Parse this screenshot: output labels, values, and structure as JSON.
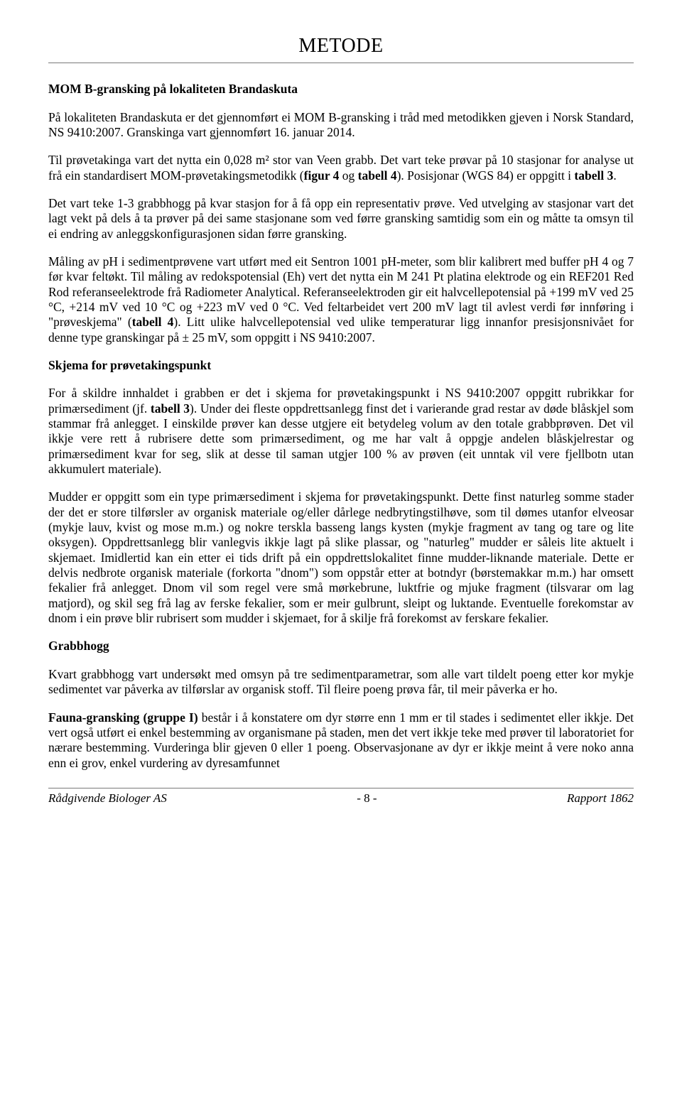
{
  "title": "METODE",
  "h1": "MOM B-gransking på lokaliteten Brandaskuta",
  "p1": "På lokaliteten Brandaskuta er det gjennomført ei MOM B-gransking i tråd med metodikken gjeven i Norsk Standard, NS 9410:2007. Granskinga vart gjennomført 16. januar 2014.",
  "p2a": "Til prøvetakinga vart det nytta ein 0,028 m² stor van Veen grabb. Det vart teke prøvar på 10 stasjonar for analyse ut frå ein standardisert MOM-prøvetakingsmetodikk (",
  "p2b_bold": "figur 4",
  "p2c": " og ",
  "p2d_bold": "tabell 4",
  "p2e": "). Posisjonar (WGS 84) er oppgitt i ",
  "p2f_bold": "tabell 3",
  "p2g": ".",
  "p3": "Det vart teke 1-3 grabbhogg på kvar stasjon for å få opp ein representativ prøve. Ved utvelging av stasjonar vart det lagt vekt på dels å ta prøver på dei same stasjonane som ved førre gransking samtidig som ein og måtte ta omsyn til ei endring av anleggskonfigurasjonen sidan førre gransking.",
  "p4a": "Måling av pH i sedimentprøvene vart utført med eit Sentron 1001 pH-meter, som blir kalibrert med buffer pH 4 og 7 før kvar feltøkt. Til måling av redokspotensial (Eh) vert det nytta ein M 241 Pt platina elektrode og ein REF201 Red Rod referanseelektrode frå Radiometer Analytical. Referanseelektroden gir eit halvcellepotensial på +199 mV ved 25 °C, +214 mV ved 10 °C og +223 mV ved 0 °C. Ved feltarbeidet vert 200 mV lagt til avlest verdi før innføring i \"prøveskjema\" (",
  "p4b_bold": "tabell 4",
  "p4c": "). Litt ulike halvcellepotensial ved ulike temperaturar ligg innanfor presisjonsnivået for denne type granskingar på ± 25 mV, som oppgitt i NS 9410:2007.",
  "h2": "Skjema for prøvetakingspunkt",
  "p5a": "For å skildre innhaldet i grabben er det i skjema for prøvetakingspunkt i NS 9410:2007 oppgitt rubrikkar for primærsediment (jf. ",
  "p5b_bold": "tabell 3",
  "p5c": "). Under dei fleste oppdrettsanlegg finst det i varierande grad restar av døde blåskjel som stammar frå anlegget. I einskilde prøver kan desse utgjere eit betydeleg volum av den totale grabbprøven. Det vil ikkje vere rett å rubrisere dette som primærsediment, og me har valt å oppgje andelen blåskjelrestar og primærsediment kvar for seg, slik at desse til saman utgjer 100 % av prøven (eit unntak vil vere fjellbotn utan akkumulert materiale).",
  "p6": "Mudder er oppgitt som ein type primærsediment i skjema for prøvetakingspunkt. Dette finst naturleg somme stader der det er store tilførsler av organisk materiale og/eller dårlege nedbrytingstilhøve, som til dømes utanfor elveosar (mykje lauv, kvist og mose m.m.) og nokre terskla basseng langs kysten (mykje fragment av tang og tare og lite oksygen). Oppdrettsanlegg blir vanlegvis ikkje lagt på slike plassar, og \"naturleg\" mudder er såleis lite aktuelt i skjemaet. Imidlertid kan ein etter ei tids drift på ein oppdrettslokalitet finne mudder-liknande materiale. Dette er delvis nedbrote organisk materiale (forkorta \"dnom\") som oppstår etter at botndyr (børstemakkar m.m.) har omsett fekalier frå anlegget. Dnom vil som regel vere små mørkebrune, luktfrie og mjuke fragment (tilsvarar om lag matjord), og skil seg frå lag av ferske fekalier, som er meir gulbrunt, sleipt og luktande. Eventuelle forekomstar av dnom i ein prøve blir rubrisert som mudder i skjemaet, for å skilje frå forekomst av ferskare fekalier.",
  "h3": "Grabbhogg",
  "p7": "Kvart grabbhogg vart undersøkt med omsyn på tre sedimentparametrar, som alle vart tildelt poeng etter kor mykje sedimentet var påverka av tilførslar av organisk stoff. Til fleire poeng prøva får, til meir påverka er ho.",
  "p8a_bold": "Fauna-gransking (gruppe I)",
  "p8b": " består i å konstatere om dyr større enn 1 mm er til stades i sedimentet eller ikkje. Det vert også utført ei enkel bestemming av organismane på staden, men det vert ikkje teke med prøver til laboratoriet for nærare bestemming. Vurderinga blir gjeven 0 eller 1 poeng. Observasjonane av dyr er ikkje meint å vere noko anna enn ei grov, enkel vurdering av dyresamfunnet",
  "footer": {
    "left": "Rådgivende Biologer AS",
    "center": "- 8 -",
    "right": "Rapport 1862"
  }
}
